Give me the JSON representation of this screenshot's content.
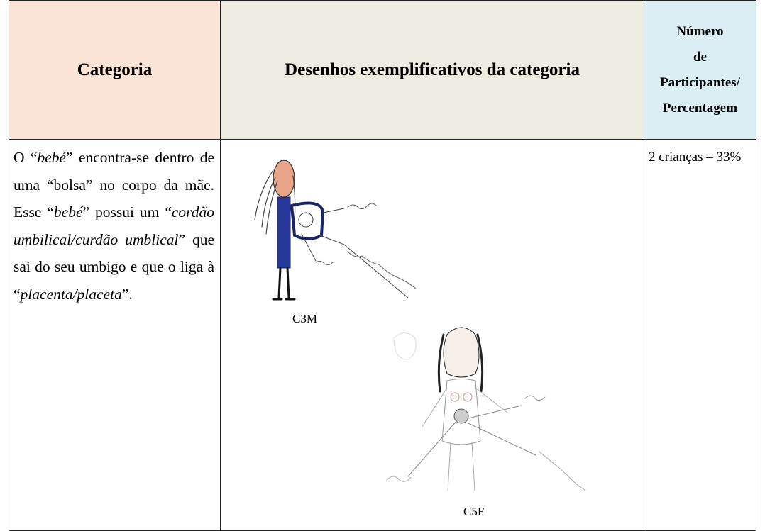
{
  "table": {
    "header": {
      "category": "Categoria",
      "drawings": "Desenhos exemplificativos da categoria",
      "participants": [
        "Número",
        "de",
        "Participantes/",
        "Percentagem"
      ]
    },
    "rows": [
      {
        "description": [
          {
            "text": "O “"
          },
          {
            "text": "bebé",
            "italic": true
          },
          {
            "text": "” encontra-se dentro de uma “bolsa” no corpo da mãe. Esse “"
          },
          {
            "text": "bebé",
            "italic": true
          },
          {
            "text": "” possui um “"
          },
          {
            "text": "cordão umbilical/curdão umblical",
            "italic": true
          },
          {
            "text": "” que sai do seu umbigo e que o liga à “"
          },
          {
            "text": "placenta/placeta",
            "italic": true
          },
          {
            "text": "”."
          }
        ],
        "drawings": [
          {
            "caption": "C3M"
          },
          {
            "caption": "C5F"
          }
        ],
        "participants": "2 crianças – 33%"
      }
    ]
  }
}
